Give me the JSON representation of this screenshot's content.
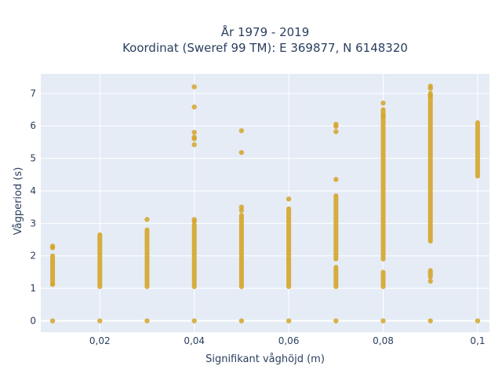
{
  "chart_data": {
    "type": "scatter",
    "title_lines": [
      "År 1979 - 2019",
      "Koordinat (Sweref 99 TM): E 369877, N 6148320"
    ],
    "xlabel": "Signifikant våghöjd (m)",
    "ylabel": "Vågperiod (s)",
    "xlim": [
      0.0075,
      0.1025
    ],
    "ylim": [
      -0.35,
      7.6
    ],
    "x_ticks": [
      {
        "value": 0.02,
        "label": "0,02"
      },
      {
        "value": 0.04,
        "label": "0,04"
      },
      {
        "value": 0.06,
        "label": "0,06"
      },
      {
        "value": 0.08,
        "label": "0,08"
      },
      {
        "value": 0.1,
        "label": "0,1"
      }
    ],
    "y_ticks": [
      {
        "value": 0,
        "label": "0"
      },
      {
        "value": 1,
        "label": "1"
      },
      {
        "value": 2,
        "label": "2"
      },
      {
        "value": 3,
        "label": "3"
      },
      {
        "value": 4,
        "label": "4"
      },
      {
        "value": 5,
        "label": "5"
      },
      {
        "value": 6,
        "label": "6"
      },
      {
        "value": 7,
        "label": "7"
      }
    ],
    "grid": true,
    "legend": "none",
    "marker_color": "#d4a52a",
    "background_color": "#e5ecf6",
    "series": [
      {
        "x": 0.01,
        "dense_ranges": [
          [
            1.15,
            2.0
          ]
        ],
        "points": [
          0.0,
          2.25,
          2.3,
          1.12
        ]
      },
      {
        "x": 0.02,
        "dense_ranges": [
          [
            1.05,
            2.65
          ]
        ],
        "points": [
          0.0
        ]
      },
      {
        "x": 0.03,
        "dense_ranges": [
          [
            1.05,
            2.8
          ]
        ],
        "points": [
          0.0,
          3.12
        ]
      },
      {
        "x": 0.04,
        "dense_ranges": [
          [
            1.05,
            2.95
          ]
        ],
        "points": [
          0.0,
          3.05,
          3.12,
          5.42,
          5.6,
          5.65,
          5.8,
          6.58,
          7.2
        ]
      },
      {
        "x": 0.05,
        "dense_ranges": [
          [
            1.05,
            3.25
          ]
        ],
        "points": [
          0.0,
          3.4,
          3.5,
          5.18,
          5.85
        ]
      },
      {
        "x": 0.06,
        "dense_ranges": [
          [
            1.05,
            3.45
          ]
        ],
        "points": [
          0.0,
          3.75
        ]
      },
      {
        "x": 0.07,
        "dense_ranges": [
          [
            1.9,
            3.85
          ],
          [
            1.05,
            1.65
          ]
        ],
        "points": [
          0.0,
          4.35,
          5.82,
          5.98,
          6.05
        ]
      },
      {
        "x": 0.08,
        "dense_ranges": [
          [
            1.9,
            6.5
          ],
          [
            1.05,
            1.5
          ]
        ],
        "points": [
          0.0,
          6.7,
          6.3
        ]
      },
      {
        "x": 0.09,
        "dense_ranges": [
          [
            2.45,
            7.0
          ],
          [
            1.35,
            1.55
          ]
        ],
        "points": [
          0.0,
          1.22,
          7.15,
          7.22,
          6.92
        ]
      },
      {
        "x": 0.1,
        "dense_ranges": [
          [
            4.45,
            6.1
          ]
        ],
        "points": [
          0.0
        ]
      }
    ]
  }
}
